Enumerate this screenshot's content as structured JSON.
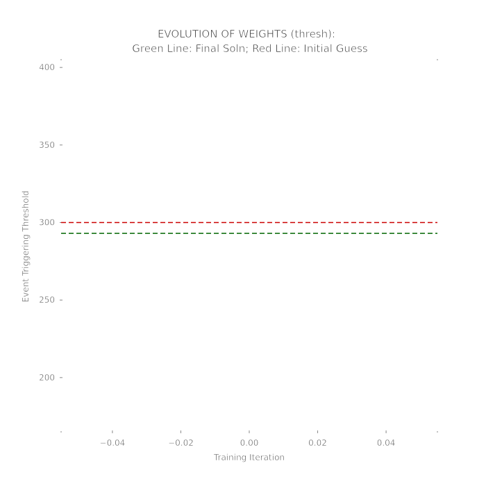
{
  "chart_data": {
    "type": "line",
    "title_line1": "EVOLUTION OF WEIGHTS (thresh):",
    "title_line2": "Green Line: Final Soln; Red Line: Initial Guess",
    "xlabel": "Training Iteration",
    "ylabel": "Event Triggering Threshold",
    "xlim": [
      -0.055,
      0.055
    ],
    "ylim": [
      165,
      405
    ],
    "xticks": [
      -0.04,
      -0.02,
      0.0,
      0.02,
      0.04
    ],
    "xtick_labels": [
      "−0.04",
      "−0.02",
      "0.00",
      "0.02",
      "0.04"
    ],
    "yticks": [
      200,
      250,
      300,
      350,
      400
    ],
    "ytick_labels": [
      "200",
      "250",
      "300",
      "350",
      "400"
    ],
    "grid": false,
    "series": [
      {
        "name": "Initial Guess",
        "y": 300,
        "color": "#cc0000",
        "style": "dashed"
      },
      {
        "name": "Final Soln",
        "y": 293,
        "color": "#006600",
        "style": "dashed"
      }
    ]
  }
}
